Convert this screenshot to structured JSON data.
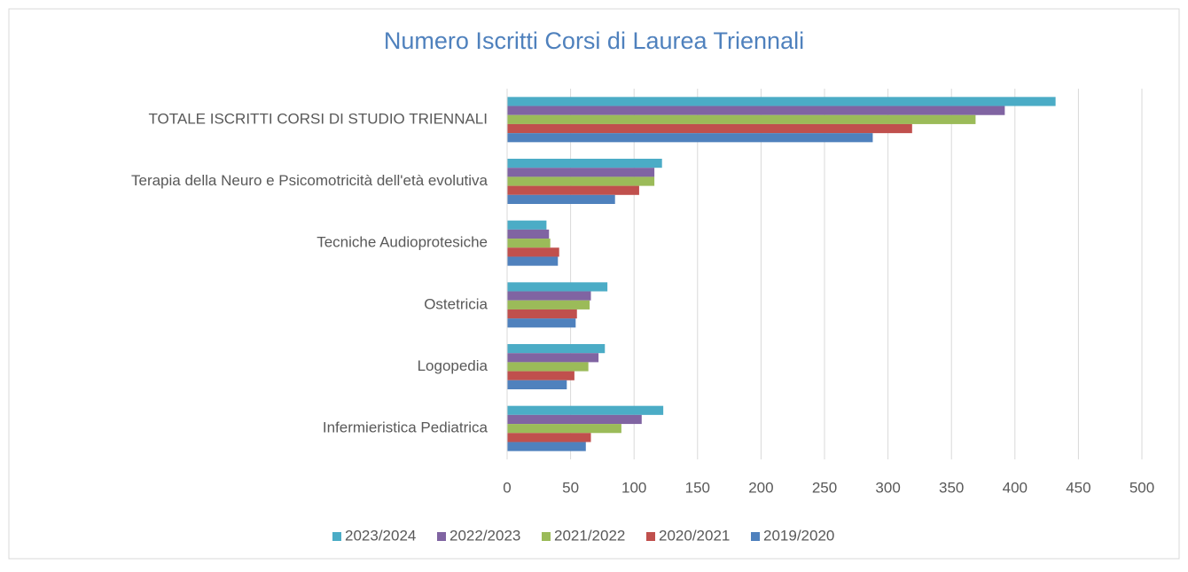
{
  "chart_data": {
    "type": "hbar",
    "title": "Numero Iscritti  Corsi di Laurea Triennali",
    "categories": [
      "TOTALE ISCRITTI CORSI DI STUDIO TRIENNALI",
      "Terapia della Neuro e Psicomotricità dell'età evolutiva",
      "Tecniche Audioprotesiche",
      "Ostetricia",
      "Logopedia",
      "Infermieristica Pediatrica"
    ],
    "series": [
      {
        "name": "2023/2024",
        "color": "#4bacc6",
        "values": [
          432,
          122,
          31,
          79,
          77,
          123
        ]
      },
      {
        "name": "2022/2023",
        "color": "#8064a2",
        "values": [
          392,
          116,
          33,
          66,
          72,
          106
        ]
      },
      {
        "name": "2021/2022",
        "color": "#9bbb59",
        "values": [
          369,
          116,
          34,
          65,
          64,
          90
        ]
      },
      {
        "name": "2020/2021",
        "color": "#c0504d",
        "values": [
          319,
          104,
          41,
          55,
          53,
          66
        ]
      },
      {
        "name": "2019/2020",
        "color": "#4f81bd",
        "values": [
          288,
          85,
          40,
          54,
          47,
          62
        ]
      }
    ],
    "xlim": [
      0,
      500
    ],
    "xticks": [
      0,
      50,
      100,
      150,
      200,
      250,
      300,
      350,
      400,
      450,
      500
    ],
    "grid": true,
    "legend": "bottom"
  }
}
